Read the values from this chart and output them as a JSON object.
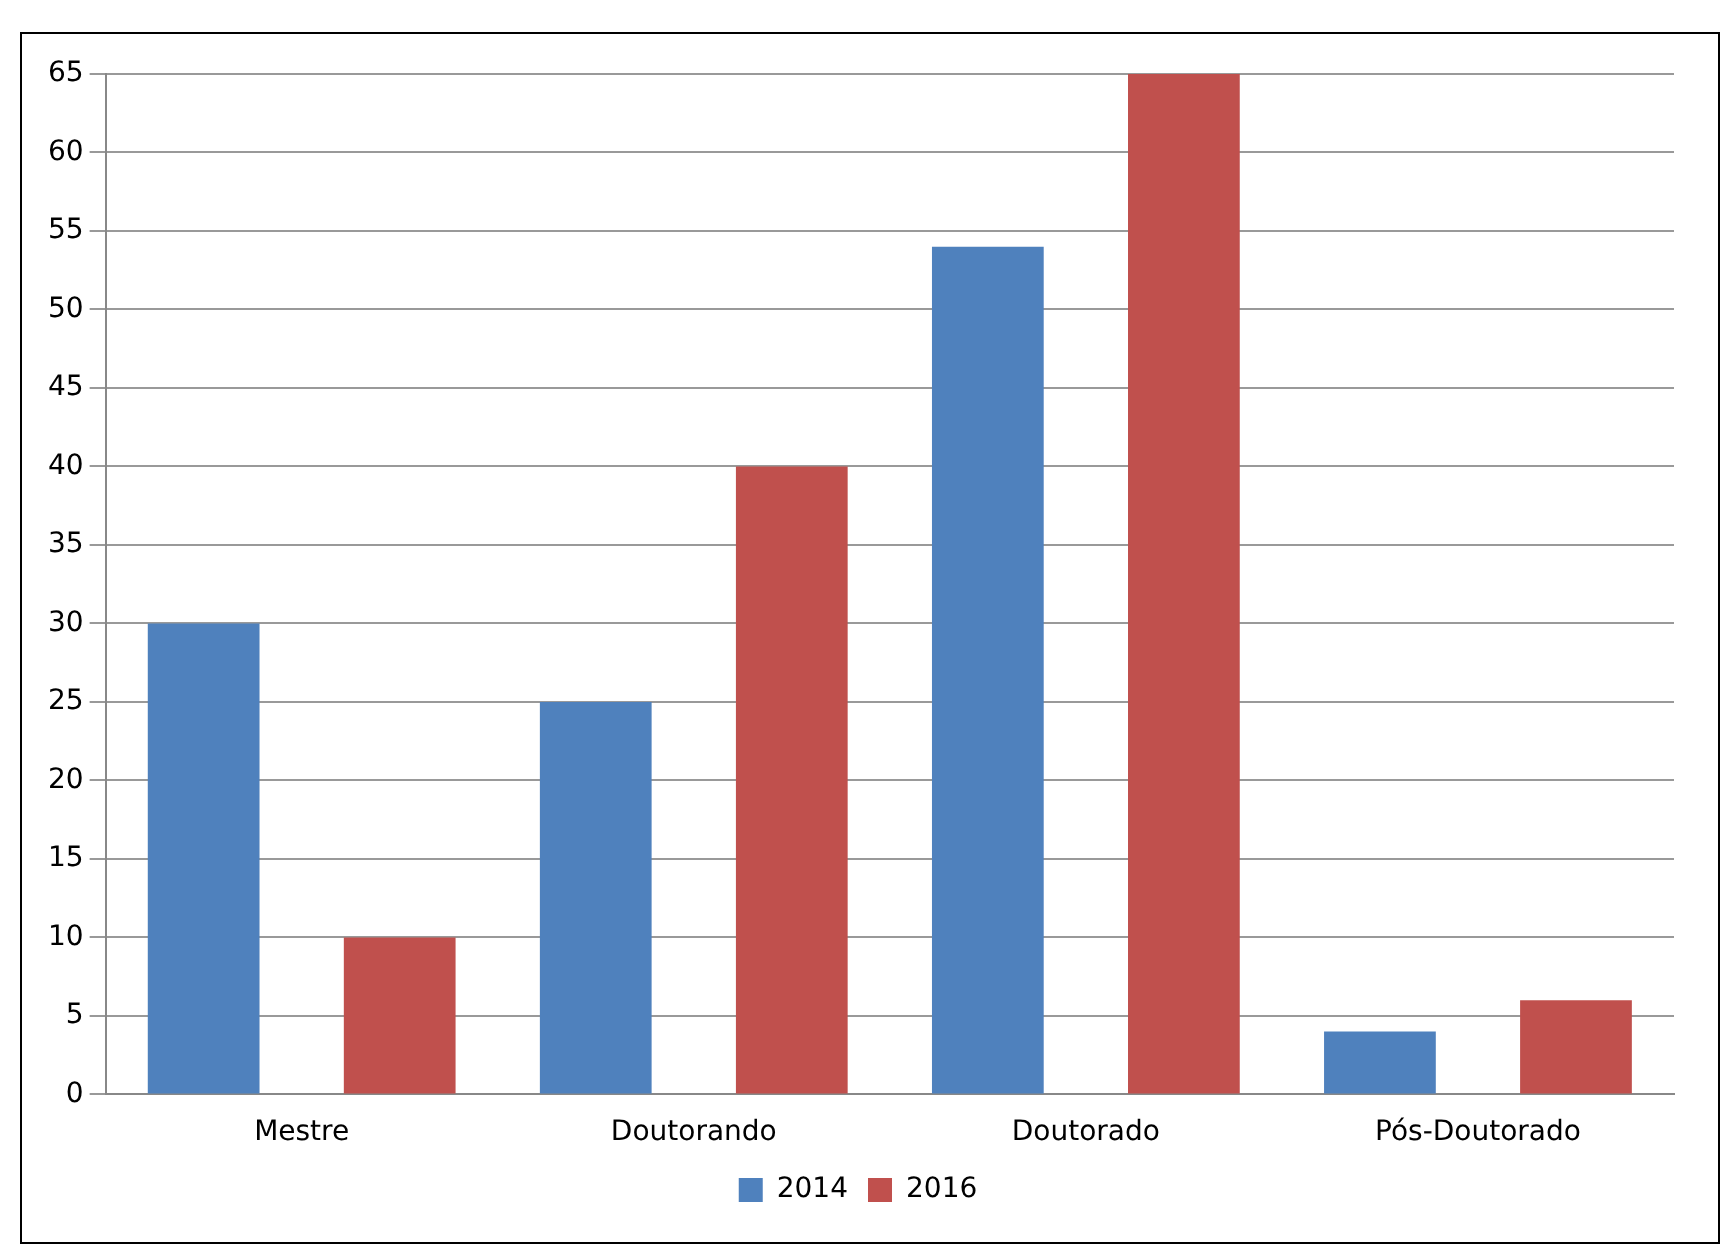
{
  "chart_data": {
    "type": "bar",
    "categories": [
      "Mestre",
      "Doutorando",
      "Doutorado",
      "Pós-Doutorado"
    ],
    "series": [
      {
        "name": "2014",
        "color": "#4f81bd",
        "values": [
          30,
          25,
          54,
          4
        ]
      },
      {
        "name": "2016",
        "color": "#c0504d",
        "values": [
          10,
          40,
          65,
          6
        ]
      }
    ],
    "ylim": [
      0,
      65
    ],
    "yticks": [
      0,
      5,
      10,
      15,
      20,
      25,
      30,
      35,
      40,
      45,
      50,
      55,
      60,
      65
    ],
    "grid": "y",
    "legend": "bottom"
  }
}
